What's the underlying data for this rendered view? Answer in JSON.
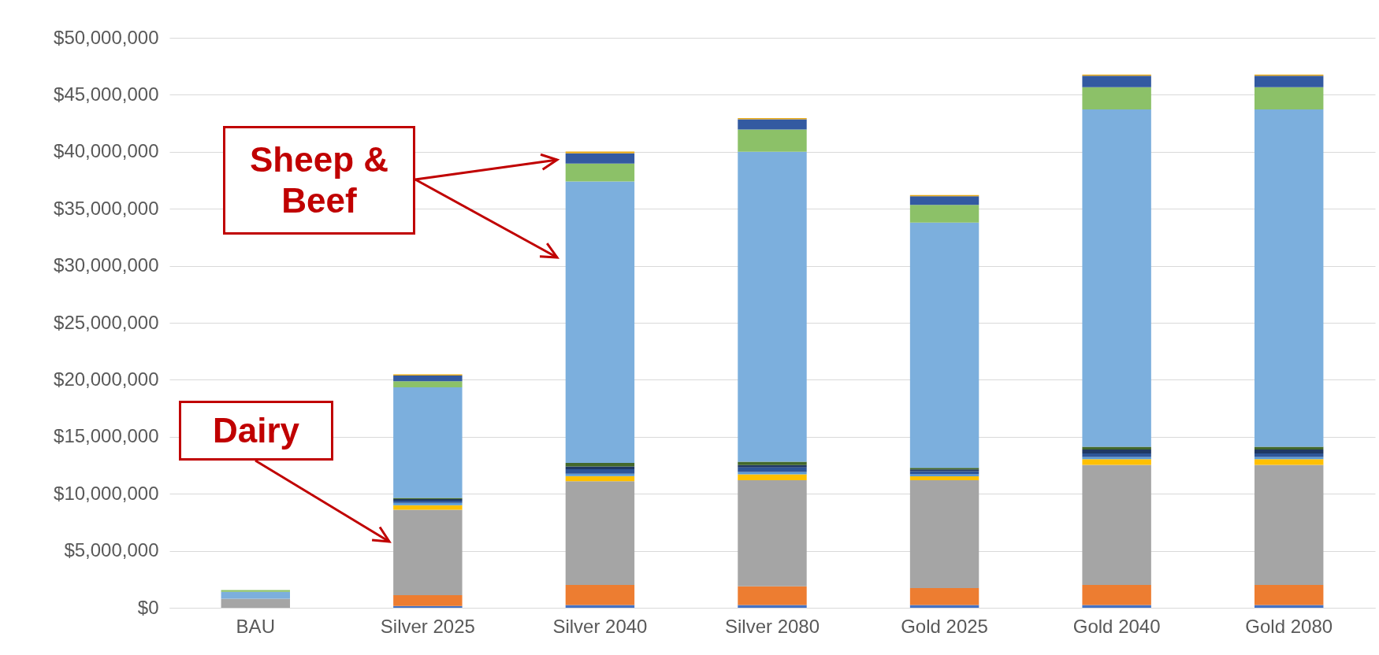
{
  "chart_data": {
    "type": "bar",
    "stacked": true,
    "categories": [
      "BAU",
      "Silver 2025",
      "Silver 2040",
      "Silver 2080",
      "Gold 2025",
      "Gold 2040",
      "Gold 2080"
    ],
    "series": [
      {
        "color": "#4472c4",
        "values": [
          null,
          150000,
          250000,
          250000,
          250000,
          250000,
          250000
        ]
      },
      {
        "color": "#ed7d31",
        "values": [
          null,
          950000,
          1750000,
          1630000,
          1480000,
          1750000,
          1750000
        ]
      },
      {
        "color": "#a5a5a5",
        "values": [
          800000,
          7500000,
          9100000,
          9300000,
          9450000,
          10540000,
          10540000
        ]
      },
      {
        "color": "#ffc000",
        "values": [
          null,
          400000,
          450000,
          530000,
          350000,
          500000,
          500000
        ]
      },
      {
        "color": "#5b9bd5",
        "values": [
          null,
          200000,
          200000,
          200000,
          180000,
          190000,
          190000
        ]
      },
      {
        "color": "#2e5597",
        "values": [
          null,
          200000,
          400000,
          400000,
          270000,
          300000,
          300000
        ]
      },
      {
        "color": "#1f3864",
        "values": [
          null,
          130000,
          250000,
          200000,
          150000,
          350000,
          350000
        ]
      },
      {
        "color": "#43682b",
        "values": [
          null,
          100000,
          300000,
          300000,
          150000,
          240000,
          240000
        ]
      },
      {
        "color": "#7cafdd",
        "values": [
          600000,
          9700000,
          24700000,
          27200000,
          21500000,
          29600000,
          29600000
        ]
      },
      {
        "color": "#8cc168",
        "values": [
          150000,
          550000,
          1570000,
          1950000,
          1570000,
          1950000,
          1950000
        ]
      },
      {
        "color": "#335aa1",
        "values": [
          null,
          500000,
          900000,
          900000,
          760000,
          1000000,
          1000000
        ]
      },
      {
        "color": "#e6a817",
        "values": [
          null,
          100000,
          150000,
          100000,
          100000,
          100000,
          100000
        ]
      }
    ],
    "ylim": [
      0,
      50000000
    ],
    "yticks": [
      {
        "value": 0,
        "label": "$0"
      },
      {
        "value": 5000000,
        "label": "$5,000,000"
      },
      {
        "value": 10000000,
        "label": "$10,000,000"
      },
      {
        "value": 15000000,
        "label": "$15,000,000"
      },
      {
        "value": 20000000,
        "label": "$20,000,000"
      },
      {
        "value": 25000000,
        "label": "$25,000,000"
      },
      {
        "value": 30000000,
        "label": "$30,000,000"
      },
      {
        "value": 35000000,
        "label": "$35,000,000"
      },
      {
        "value": 40000000,
        "label": "$40,000,000"
      },
      {
        "value": 45000000,
        "label": "$45,000,000"
      },
      {
        "value": 50000000,
        "label": "$50,000,000"
      }
    ],
    "grid": "y",
    "legend": false,
    "annotations": [
      "Sheep & Beef",
      "Dairy"
    ]
  }
}
